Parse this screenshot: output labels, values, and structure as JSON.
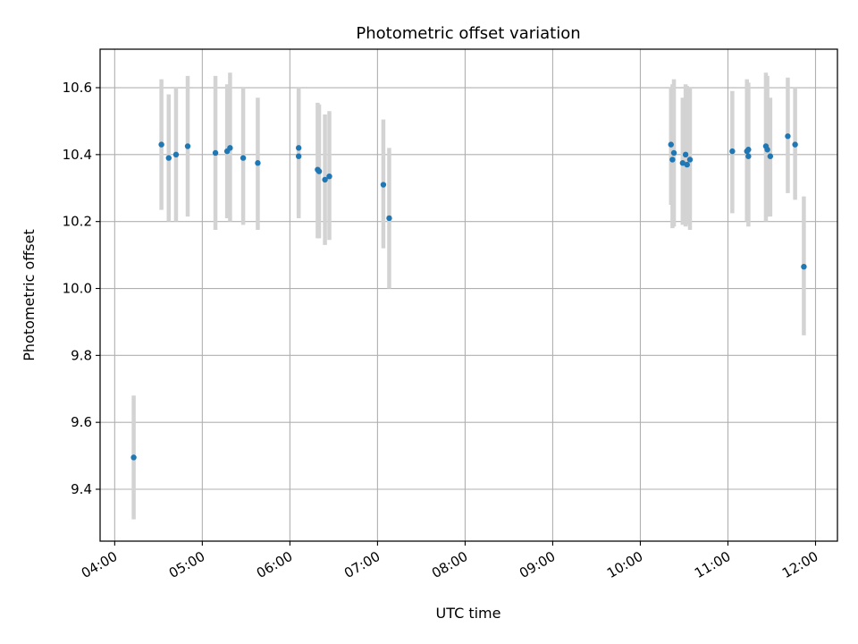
{
  "chart_data": {
    "type": "scatter",
    "title": "Photometric offset variation",
    "xlabel": "UTC time",
    "ylabel": "Photometric offset",
    "x_ticks": [
      "04:00",
      "05:00",
      "06:00",
      "07:00",
      "08:00",
      "09:00",
      "10:00",
      "11:00",
      "12:00"
    ],
    "y_ticks": [
      "9.4",
      "9.6",
      "9.8",
      "10.0",
      "10.2",
      "10.4",
      "10.6"
    ],
    "xlim": [
      "03:50",
      "12:15"
    ],
    "ylim": [
      9.245,
      10.715
    ],
    "grid": true,
    "colors": {
      "point": "#1f77b4",
      "errorbar": "#d3d3d3",
      "grid": "#b0b0b0"
    },
    "points": [
      {
        "x": "04:13",
        "y": 9.495,
        "err_low": 9.31,
        "err_high": 9.68
      },
      {
        "x": "04:32",
        "y": 10.43,
        "err_low": 10.235,
        "err_high": 10.625
      },
      {
        "x": "04:37",
        "y": 10.39,
        "err_low": 10.2,
        "err_high": 10.58
      },
      {
        "x": "04:42",
        "y": 10.4,
        "err_low": 10.2,
        "err_high": 10.6
      },
      {
        "x": "04:50",
        "y": 10.425,
        "err_low": 10.215,
        "err_high": 10.635
      },
      {
        "x": "05:09",
        "y": 10.405,
        "err_low": 10.175,
        "err_high": 10.635
      },
      {
        "x": "05:17",
        "y": 10.41,
        "err_low": 10.21,
        "err_high": 10.61
      },
      {
        "x": "05:19",
        "y": 10.42,
        "err_low": 10.2,
        "err_high": 10.645
      },
      {
        "x": "05:28",
        "y": 10.39,
        "err_low": 10.19,
        "err_high": 10.6
      },
      {
        "x": "05:38",
        "y": 10.375,
        "err_low": 10.175,
        "err_high": 10.57
      },
      {
        "x": "06:06",
        "y": 10.42,
        "err_low": 10.21,
        "err_high": 10.6
      },
      {
        "x": "06:06",
        "y": 10.395,
        "err_low": 10.22,
        "err_high": 10.6
      },
      {
        "x": "06:19",
        "y": 10.355,
        "err_low": 10.15,
        "err_high": 10.555
      },
      {
        "x": "06:20",
        "y": 10.35,
        "err_low": 10.15,
        "err_high": 10.55
      },
      {
        "x": "06:24",
        "y": 10.325,
        "err_low": 10.13,
        "err_high": 10.52
      },
      {
        "x": "06:27",
        "y": 10.335,
        "err_low": 10.145,
        "err_high": 10.53
      },
      {
        "x": "07:04",
        "y": 10.31,
        "err_low": 10.12,
        "err_high": 10.505
      },
      {
        "x": "07:08",
        "y": 10.21,
        "err_low": 10.0,
        "err_high": 10.42
      },
      {
        "x": "10:21",
        "y": 10.43,
        "err_low": 10.25,
        "err_high": 10.6
      },
      {
        "x": "10:22",
        "y": 10.385,
        "err_low": 10.18,
        "err_high": 10.61
      },
      {
        "x": "10:23",
        "y": 10.405,
        "err_low": 10.185,
        "err_high": 10.625
      },
      {
        "x": "10:29",
        "y": 10.375,
        "err_low": 10.19,
        "err_high": 10.57
      },
      {
        "x": "10:31",
        "y": 10.4,
        "err_low": 10.185,
        "err_high": 10.61
      },
      {
        "x": "10:32",
        "y": 10.37,
        "err_low": 10.19,
        "err_high": 10.605
      },
      {
        "x": "10:34",
        "y": 10.385,
        "err_low": 10.175,
        "err_high": 10.6
      },
      {
        "x": "11:03",
        "y": 10.41,
        "err_low": 10.225,
        "err_high": 10.59
      },
      {
        "x": "11:13",
        "y": 10.41,
        "err_low": 10.2,
        "err_high": 10.625
      },
      {
        "x": "11:14",
        "y": 10.415,
        "err_low": 10.185,
        "err_high": 10.615
      },
      {
        "x": "11:14",
        "y": 10.395,
        "err_low": 10.2,
        "err_high": 10.6
      },
      {
        "x": "11:26",
        "y": 10.425,
        "err_low": 10.2,
        "err_high": 10.645
      },
      {
        "x": "11:27",
        "y": 10.415,
        "err_low": 10.215,
        "err_high": 10.635
      },
      {
        "x": "11:29",
        "y": 10.395,
        "err_low": 10.215,
        "err_high": 10.57
      },
      {
        "x": "11:41",
        "y": 10.455,
        "err_low": 10.285,
        "err_high": 10.63
      },
      {
        "x": "11:46",
        "y": 10.43,
        "err_low": 10.265,
        "err_high": 10.6
      },
      {
        "x": "11:52",
        "y": 10.065,
        "err_low": 9.86,
        "err_high": 10.275
      }
    ]
  }
}
